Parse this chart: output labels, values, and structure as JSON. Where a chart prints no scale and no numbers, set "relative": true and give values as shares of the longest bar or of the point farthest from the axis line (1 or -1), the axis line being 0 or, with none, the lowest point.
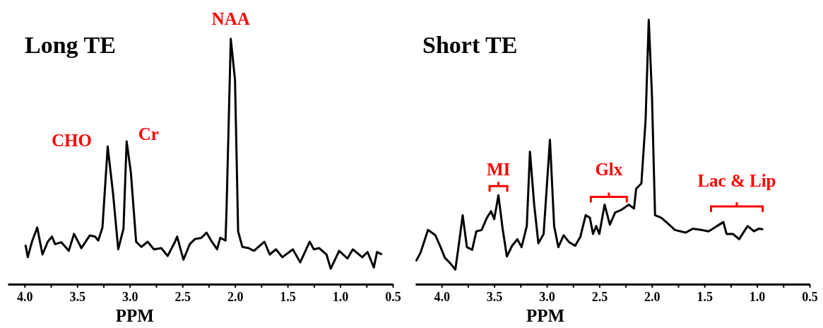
{
  "chart_data": [
    {
      "type": "line",
      "title": "Long TE",
      "xlabel": "PPM",
      "relative": true,
      "xlim": [
        4.16,
        0.5
      ],
      "xticks": [
        {
          "value": 4.0,
          "label": "4.0"
        },
        {
          "value": 3.75,
          "label": null
        },
        3.5,
        {
          "value": 3.25,
          "label": null
        },
        {
          "value": 3.0,
          "label": "3.0"
        },
        {
          "value": 2.75,
          "label": null
        },
        2.5,
        {
          "value": 2.25,
          "label": null
        },
        {
          "value": 2.0,
          "label": "2.0"
        },
        {
          "value": 1.75,
          "label": null
        },
        1.5,
        {
          "value": 1.25,
          "label": null
        },
        {
          "value": 1.0,
          "label": "1.0"
        },
        {
          "value": 0.75,
          "label": null
        },
        0.5
      ],
      "annotations": [
        {
          "text": "CHO",
          "x": 3.21,
          "y": 0.561
        },
        {
          "text": "Cr",
          "x": 3.03,
          "y": 0.582
        },
        {
          "text": "NAA",
          "x": 2.04,
          "y": 1.0
        }
      ],
      "series": [
        {
          "color": "#000000",
          "x": [
            3.99,
            3.97,
            3.93,
            3.88,
            3.83,
            3.78,
            3.74,
            3.71,
            3.65,
            3.58,
            3.53,
            3.46,
            3.38,
            3.33,
            3.3,
            3.26,
            3.21,
            3.16,
            3.11,
            3.06,
            3.03,
            2.99,
            2.94,
            2.89,
            2.83,
            2.77,
            2.7,
            2.64,
            2.57,
            2.55,
            2.49,
            2.43,
            2.38,
            2.32,
            2.27,
            2.22,
            2.17,
            2.14,
            2.09,
            2.08,
            2.04,
            2.0,
            1.97,
            1.93,
            1.87,
            1.82,
            1.72,
            1.67,
            1.61,
            1.55,
            1.45,
            1.38,
            1.29,
            1.25,
            1.2,
            1.13,
            1.09,
            1.01,
            0.93,
            0.88,
            0.79,
            0.74,
            0.68,
            0.65,
            0.61
          ],
          "values": [
            0.157,
            0.11,
            0.173,
            0.231,
            0.121,
            0.173,
            0.194,
            0.163,
            0.171,
            0.136,
            0.205,
            0.147,
            0.199,
            0.194,
            0.178,
            0.231,
            0.561,
            0.373,
            0.142,
            0.226,
            0.582,
            0.456,
            0.173,
            0.152,
            0.173,
            0.142,
            0.147,
            0.115,
            0.173,
            0.194,
            0.1,
            0.163,
            0.184,
            0.189,
            0.21,
            0.173,
            0.142,
            0.189,
            0.178,
            0.31,
            1.0,
            0.834,
            0.215,
            0.152,
            0.147,
            0.136,
            0.173,
            0.121,
            0.142,
            0.11,
            0.142,
            0.089,
            0.173,
            0.142,
            0.147,
            0.121,
            0.063,
            0.136,
            0.105,
            0.142,
            0.11,
            0.131,
            0.068,
            0.131,
            0.123
          ]
        }
      ]
    },
    {
      "type": "line",
      "title": "Short TE",
      "xlabel": "PPM",
      "relative": true,
      "xlim": [
        4.25,
        0.5
      ],
      "xticks": [
        {
          "value": 4.0,
          "label": "4.0"
        },
        {
          "value": 3.75,
          "label": null
        },
        3.5,
        {
          "value": 3.25,
          "label": null
        },
        {
          "value": 3.0,
          "label": "3.0"
        },
        {
          "value": 2.75,
          "label": null
        },
        2.5,
        {
          "value": 2.25,
          "label": null
        },
        {
          "value": 2.0,
          "label": "2.0"
        },
        {
          "value": 1.75,
          "label": null
        },
        1.5,
        {
          "value": 1.25,
          "label": null
        },
        {
          "value": 1.0,
          "label": "1.0"
        },
        {
          "value": 0.75,
          "label": null
        },
        0.5
      ],
      "annotations": [
        {
          "text": "MI",
          "x": 3.46,
          "y": 0.336
        },
        {
          "text": "Glx",
          "x": 2.45,
          "y": 0.301
        },
        {
          "text": "Lac & Lip",
          "x": 1.32,
          "y": 0.235
        }
      ],
      "series": [
        {
          "color": "#000000",
          "x": [
            4.24,
            4.2,
            4.13,
            4.06,
            4.01,
            3.97,
            3.92,
            3.87,
            3.84,
            3.8,
            3.76,
            3.71,
            3.67,
            3.62,
            3.57,
            3.53,
            3.5,
            3.46,
            3.42,
            3.38,
            3.33,
            3.28,
            3.24,
            3.19,
            3.16,
            3.12,
            3.08,
            3.03,
            2.97,
            2.93,
            2.89,
            2.84,
            2.79,
            2.73,
            2.68,
            2.63,
            2.59,
            2.56,
            2.53,
            2.5,
            2.45,
            2.4,
            2.35,
            2.29,
            2.22,
            2.17,
            2.15,
            2.1,
            2.06,
            2.03,
            2.0,
            1.97,
            1.91,
            1.85,
            1.78,
            1.68,
            1.61,
            1.53,
            1.46,
            1.38,
            1.32,
            1.29,
            1.23,
            1.17,
            1.13,
            1.09,
            1.03,
            0.98,
            0.95
          ],
          "values": [
            0.09,
            0.12,
            0.205,
            0.185,
            0.14,
            0.1,
            0.08,
            0.055,
            0.14,
            0.261,
            0.14,
            0.13,
            0.2,
            0.205,
            0.251,
            0.276,
            0.246,
            0.336,
            0.21,
            0.105,
            0.145,
            0.17,
            0.14,
            0.22,
            0.501,
            0.301,
            0.155,
            0.19,
            0.546,
            0.22,
            0.14,
            0.185,
            0.16,
            0.145,
            0.18,
            0.261,
            0.251,
            0.19,
            0.22,
            0.19,
            0.301,
            0.225,
            0.271,
            0.281,
            0.301,
            0.286,
            0.361,
            0.381,
            0.621,
            1.0,
            0.721,
            0.261,
            0.251,
            0.23,
            0.205,
            0.195,
            0.21,
            0.205,
            0.2,
            0.22,
            0.235,
            0.19,
            0.19,
            0.17,
            0.195,
            0.22,
            0.2,
            0.21,
            0.208
          ]
        }
      ]
    }
  ]
}
